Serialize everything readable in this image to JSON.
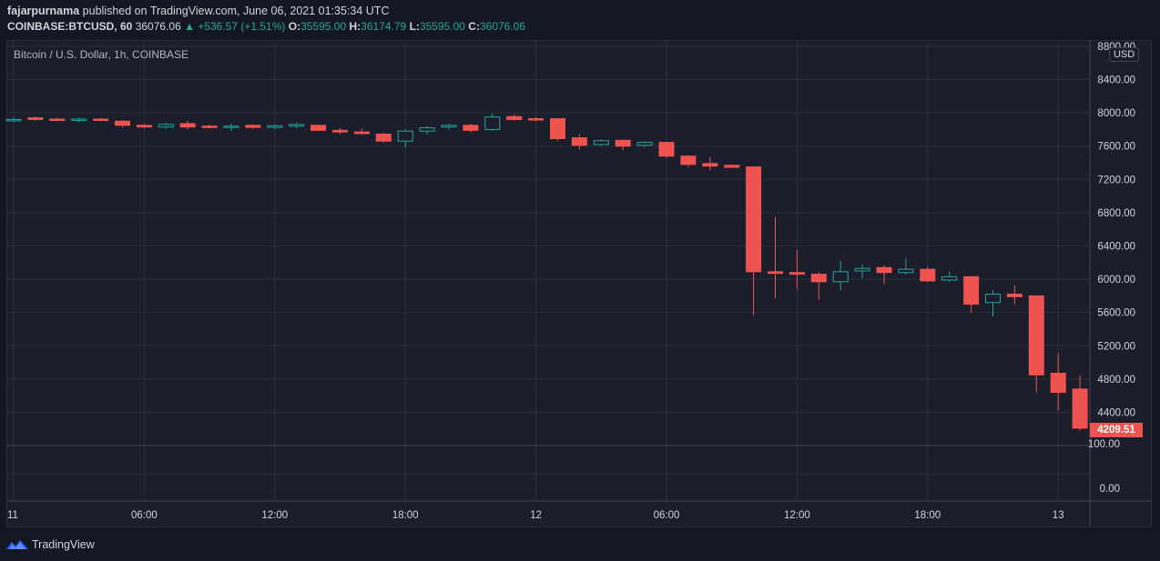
{
  "header": {
    "author": "fajarpurnama",
    "published": " published on TradingView.com, June 06, 2021 01:35:34 UTC",
    "symbol": "COINBASE:BTCUSD, 60",
    "price": "36076.06",
    "change": "▲ +536.57 (+1.51%)",
    "o_label": "O:",
    "o_value": "35595.00",
    "h_label": "H:",
    "h_value": "36174.79",
    "l_label": "L:",
    "l_value": "35595.00",
    "c_label": "C:",
    "c_value": "36076.06"
  },
  "chart_title": "Bitcoin / U.S. Dollar, 1h, COINBASE",
  "currency_badge": "USD",
  "last_price_label": "4209.51",
  "brand": "TradingView",
  "colors": {
    "background": "#131722",
    "panel": "#1b1e2a",
    "up": "#26a69a",
    "down": "#ef5350",
    "grid": "#2a2e39"
  },
  "chart_data": {
    "type": "candlestick",
    "title": "Bitcoin / U.S. Dollar, 1h, COINBASE",
    "y_ticks": [
      "8800.00",
      "8400.00",
      "8000.00",
      "7600.00",
      "7200.00",
      "6800.00",
      "6400.00",
      "6000.00",
      "5600.00",
      "5200.00",
      "4800.00",
      "4400.00"
    ],
    "y_tick_values": [
      8800,
      8400,
      8000,
      7600,
      7200,
      6800,
      6400,
      6000,
      5600,
      5200,
      4800,
      4400
    ],
    "ylim": [
      4000,
      8900
    ],
    "lower_pane_ticks": [
      "100.00",
      "0.00"
    ],
    "x_ticks": [
      {
        "i": 0,
        "label": "11"
      },
      {
        "i": 6,
        "label": "06:00"
      },
      {
        "i": 12,
        "label": "12:00"
      },
      {
        "i": 18,
        "label": "18:00"
      },
      {
        "i": 24,
        "label": "12"
      },
      {
        "i": 30,
        "label": "06:00"
      },
      {
        "i": 36,
        "label": "12:00"
      },
      {
        "i": 42,
        "label": "18:00"
      },
      {
        "i": 48,
        "label": "13"
      }
    ],
    "grid": true,
    "candles": [
      {
        "o": 7920,
        "h": 7950,
        "l": 7890,
        "c": 7920
      },
      {
        "o": 7940,
        "h": 7955,
        "l": 7905,
        "c": 7920
      },
      {
        "o": 7925,
        "h": 7940,
        "l": 7900,
        "c": 7915
      },
      {
        "o": 7910,
        "h": 7940,
        "l": 7890,
        "c": 7925
      },
      {
        "o": 7925,
        "h": 7935,
        "l": 7895,
        "c": 7910
      },
      {
        "o": 7900,
        "h": 7915,
        "l": 7825,
        "c": 7850
      },
      {
        "o": 7850,
        "h": 7865,
        "l": 7815,
        "c": 7830
      },
      {
        "o": 7830,
        "h": 7880,
        "l": 7810,
        "c": 7860
      },
      {
        "o": 7870,
        "h": 7905,
        "l": 7800,
        "c": 7830
      },
      {
        "o": 7840,
        "h": 7860,
        "l": 7815,
        "c": 7825
      },
      {
        "o": 7825,
        "h": 7870,
        "l": 7780,
        "c": 7840
      },
      {
        "o": 7850,
        "h": 7860,
        "l": 7805,
        "c": 7825
      },
      {
        "o": 7825,
        "h": 7860,
        "l": 7800,
        "c": 7845
      },
      {
        "o": 7840,
        "h": 7885,
        "l": 7815,
        "c": 7860
      },
      {
        "o": 7850,
        "h": 7860,
        "l": 7780,
        "c": 7790
      },
      {
        "o": 7790,
        "h": 7820,
        "l": 7745,
        "c": 7770
      },
      {
        "o": 7770,
        "h": 7810,
        "l": 7740,
        "c": 7750
      },
      {
        "o": 7745,
        "h": 7760,
        "l": 7640,
        "c": 7660
      },
      {
        "o": 7660,
        "h": 7800,
        "l": 7580,
        "c": 7780
      },
      {
        "o": 7780,
        "h": 7840,
        "l": 7740,
        "c": 7820
      },
      {
        "o": 7830,
        "h": 7865,
        "l": 7800,
        "c": 7850
      },
      {
        "o": 7850,
        "h": 7870,
        "l": 7770,
        "c": 7790
      },
      {
        "o": 7800,
        "h": 7990,
        "l": 7785,
        "c": 7950
      },
      {
        "o": 7955,
        "h": 7985,
        "l": 7905,
        "c": 7920
      },
      {
        "o": 7930,
        "h": 7950,
        "l": 7900,
        "c": 7920
      },
      {
        "o": 7930,
        "h": 7935,
        "l": 7665,
        "c": 7690
      },
      {
        "o": 7700,
        "h": 7745,
        "l": 7560,
        "c": 7610
      },
      {
        "o": 7620,
        "h": 7680,
        "l": 7600,
        "c": 7665
      },
      {
        "o": 7670,
        "h": 7680,
        "l": 7550,
        "c": 7600
      },
      {
        "o": 7610,
        "h": 7660,
        "l": 7590,
        "c": 7645
      },
      {
        "o": 7645,
        "h": 7650,
        "l": 7460,
        "c": 7480
      },
      {
        "o": 7480,
        "h": 7490,
        "l": 7350,
        "c": 7380
      },
      {
        "o": 7390,
        "h": 7470,
        "l": 7310,
        "c": 7360
      },
      {
        "o": 7370,
        "h": 7380,
        "l": 7340,
        "c": 7345
      },
      {
        "o": 7350,
        "h": 7350,
        "l": 5570,
        "c": 6090
      },
      {
        "o": 6090,
        "h": 6750,
        "l": 5770,
        "c": 6070
      },
      {
        "o": 6080,
        "h": 6350,
        "l": 5880,
        "c": 6060
      },
      {
        "o": 6060,
        "h": 6090,
        "l": 5750,
        "c": 5970
      },
      {
        "o": 5970,
        "h": 6220,
        "l": 5870,
        "c": 6090
      },
      {
        "o": 6100,
        "h": 6180,
        "l": 6010,
        "c": 6130
      },
      {
        "o": 6140,
        "h": 6170,
        "l": 5940,
        "c": 6080
      },
      {
        "o": 6080,
        "h": 6250,
        "l": 6060,
        "c": 6120
      },
      {
        "o": 6120,
        "h": 6150,
        "l": 5970,
        "c": 5980
      },
      {
        "o": 5990,
        "h": 6090,
        "l": 5970,
        "c": 6030
      },
      {
        "o": 6030,
        "h": 6040,
        "l": 5600,
        "c": 5700
      },
      {
        "o": 5720,
        "h": 5870,
        "l": 5550,
        "c": 5820
      },
      {
        "o": 5820,
        "h": 5930,
        "l": 5700,
        "c": 5790
      },
      {
        "o": 5800,
        "h": 5800,
        "l": 4640,
        "c": 4850
      },
      {
        "o": 4870,
        "h": 5110,
        "l": 4420,
        "c": 4640
      },
      {
        "o": 4680,
        "h": 4840,
        "l": 4180,
        "c": 4209.51
      }
    ]
  }
}
